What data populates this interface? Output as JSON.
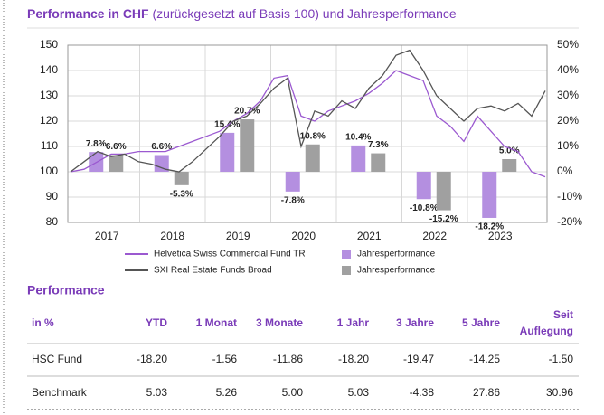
{
  "chart_data": [
    {
      "type": "line",
      "title": "Performance in CHF",
      "subtitle": "(zurückgesetzt auf Basis 100) und Jahresperformance",
      "ylim": [
        80,
        150
      ],
      "yticks": [
        80,
        90,
        100,
        110,
        120,
        130,
        140,
        150
      ],
      "grid": true,
      "series": [
        {
          "name": "Helvetica Swiss Commercial Fund TR",
          "color": "#9b59d0",
          "values": [
            100,
            101,
            104,
            107,
            107,
            108,
            108,
            108,
            110,
            112,
            114,
            116,
            120,
            123,
            128,
            137,
            138,
            122,
            120,
            124,
            126,
            128,
            131,
            135,
            140,
            138,
            136,
            122,
            118,
            112,
            122,
            116,
            110,
            108,
            100,
            98
          ]
        },
        {
          "name": "SXI Real Estate Funds Broad",
          "color": "#555555",
          "values": [
            100,
            104,
            108,
            106,
            107,
            104,
            103,
            101,
            100,
            104,
            109,
            114,
            120,
            122,
            127,
            133,
            137,
            110,
            124,
            122,
            128,
            125,
            133,
            138,
            146,
            148,
            140,
            130,
            125,
            120,
            125,
            126,
            124,
            127,
            122,
            132
          ]
        }
      ]
    },
    {
      "type": "bar",
      "categories": [
        "2017",
        "2018",
        "2019",
        "2020",
        "2021",
        "2022",
        "2023"
      ],
      "y2lim": [
        -20,
        50
      ],
      "y2ticks": [
        {
          "value": -20,
          "label": "-20%"
        },
        {
          "value": -10,
          "label": "-10%"
        },
        {
          "value": 0,
          "label": "0%"
        },
        {
          "value": 10,
          "label": "10%"
        },
        {
          "value": 20,
          "label": "20%"
        },
        {
          "value": 30,
          "label": "30%"
        },
        {
          "value": 40,
          "label": "40%"
        },
        {
          "value": 50,
          "label": "50%"
        }
      ],
      "series": [
        {
          "name": "Jahresperformance",
          "color": "#b48fe0",
          "axis": "y2",
          "values": [
            7.8,
            6.6,
            15.4,
            -7.8,
            10.4,
            -10.8,
            -18.2
          ],
          "value_labels": [
            "7.8%",
            "6.6%",
            "15.4%",
            "-7.8%",
            "10.4%",
            "-10.8%",
            "-18.2%"
          ]
        },
        {
          "name": "Jahresperformance",
          "color": "#a0a0a0",
          "axis": "y2",
          "values": [
            6.6,
            -5.3,
            20.7,
            10.8,
            7.3,
            -15.2,
            5.0
          ],
          "value_labels": [
            "6.6%",
            "-5.3%",
            "20.7%",
            "10.8%",
            "7.3%",
            "-15.2%",
            "5.0%"
          ]
        }
      ]
    }
  ],
  "table": {
    "title": "Performance",
    "header": [
      "in %",
      "YTD",
      "1 Monat",
      "3 Monate",
      "1 Jahr",
      "3 Jahre",
      "5 Jahre",
      "Seit Auflegung"
    ],
    "rows": [
      [
        "HSC Fund",
        "-18.20",
        "-1.56",
        "-11.86",
        "-18.20",
        "-19.47",
        "-14.25",
        "-1.50"
      ],
      [
        "Benchmark",
        "5.03",
        "5.26",
        "5.00",
        "5.03",
        "-4.38",
        "27.86",
        "30.96"
      ]
    ]
  }
}
